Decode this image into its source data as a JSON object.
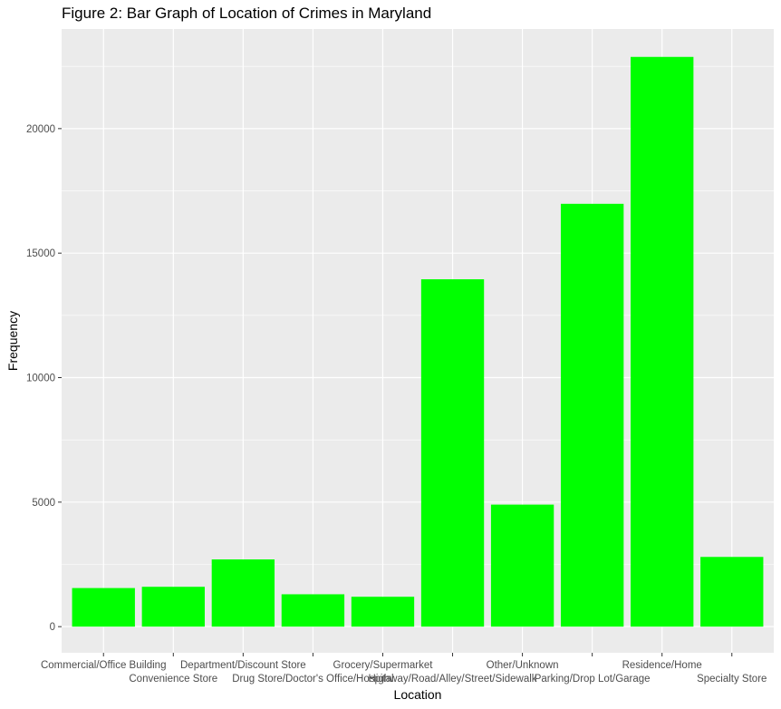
{
  "chart_data": {
    "type": "bar",
    "title": "Figure 2: Bar Graph of Location of Crimes in Maryland",
    "xlabel": "Location",
    "ylabel": "Frequency",
    "categories": [
      "Commercial/Office Building",
      "Convenience Store",
      "Department/Discount Store",
      "Drug Store/Doctor's Office/Hospital",
      "Grocery/Supermarket",
      "Highway/Road/Alley/Street/Sidewalk",
      "Other/Unknown",
      "Parking/Drop Lot/Garage",
      "Residence/Home",
      "Specialty Store"
    ],
    "values": [
      1550,
      1600,
      2700,
      1300,
      1200,
      13950,
      4900,
      16980,
      22880,
      2800
    ],
    "ylim": [
      -1050,
      24000
    ],
    "yticks": [
      0,
      5000,
      10000,
      15000,
      20000
    ],
    "ytick_labels": [
      "0",
      "5000",
      "10000",
      "15000",
      "20000"
    ],
    "grid": true,
    "legend": "none",
    "colors": {
      "bar": "#00ff00",
      "panel": "#ebebeb",
      "grid_major": "#ffffff",
      "tick_text": "#4d4d4d",
      "tick_mark": "#333333"
    }
  }
}
